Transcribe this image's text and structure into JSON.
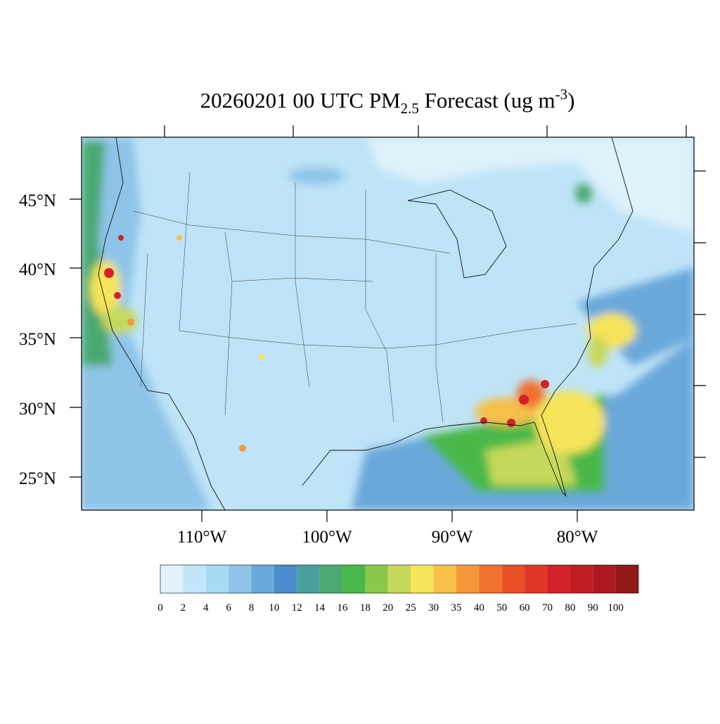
{
  "title": {
    "main": "20260201 00 UTC PM",
    "subscript": "2.5",
    "rest": " Forecast (ug m",
    "superscript": "-3",
    "end": ")"
  },
  "latitude_labels": [
    "45°N",
    "40°N",
    "35°N",
    "30°N",
    "25°N"
  ],
  "longitude_labels": [
    "110°W",
    "100°W",
    "90°W",
    "80°W"
  ],
  "colorbar": {
    "colors": [
      "#e0f3fb",
      "#c2e6f7",
      "#a6daf4",
      "#8ec4e8",
      "#6aa8da",
      "#4a8ccc",
      "#4a9e9e",
      "#4aa870",
      "#4ab84a",
      "#8ac84a",
      "#c6d85a",
      "#f6e45a",
      "#f6c04a",
      "#f6983a",
      "#f07030",
      "#e85028",
      "#e03828",
      "#d42028",
      "#c01c24",
      "#ac1a20",
      "#901818"
    ],
    "levels": [
      0,
      2,
      4,
      6,
      8,
      10,
      12,
      14,
      16,
      18,
      20,
      25,
      30,
      35,
      40,
      50,
      60,
      70,
      80,
      90,
      100
    ]
  }
}
